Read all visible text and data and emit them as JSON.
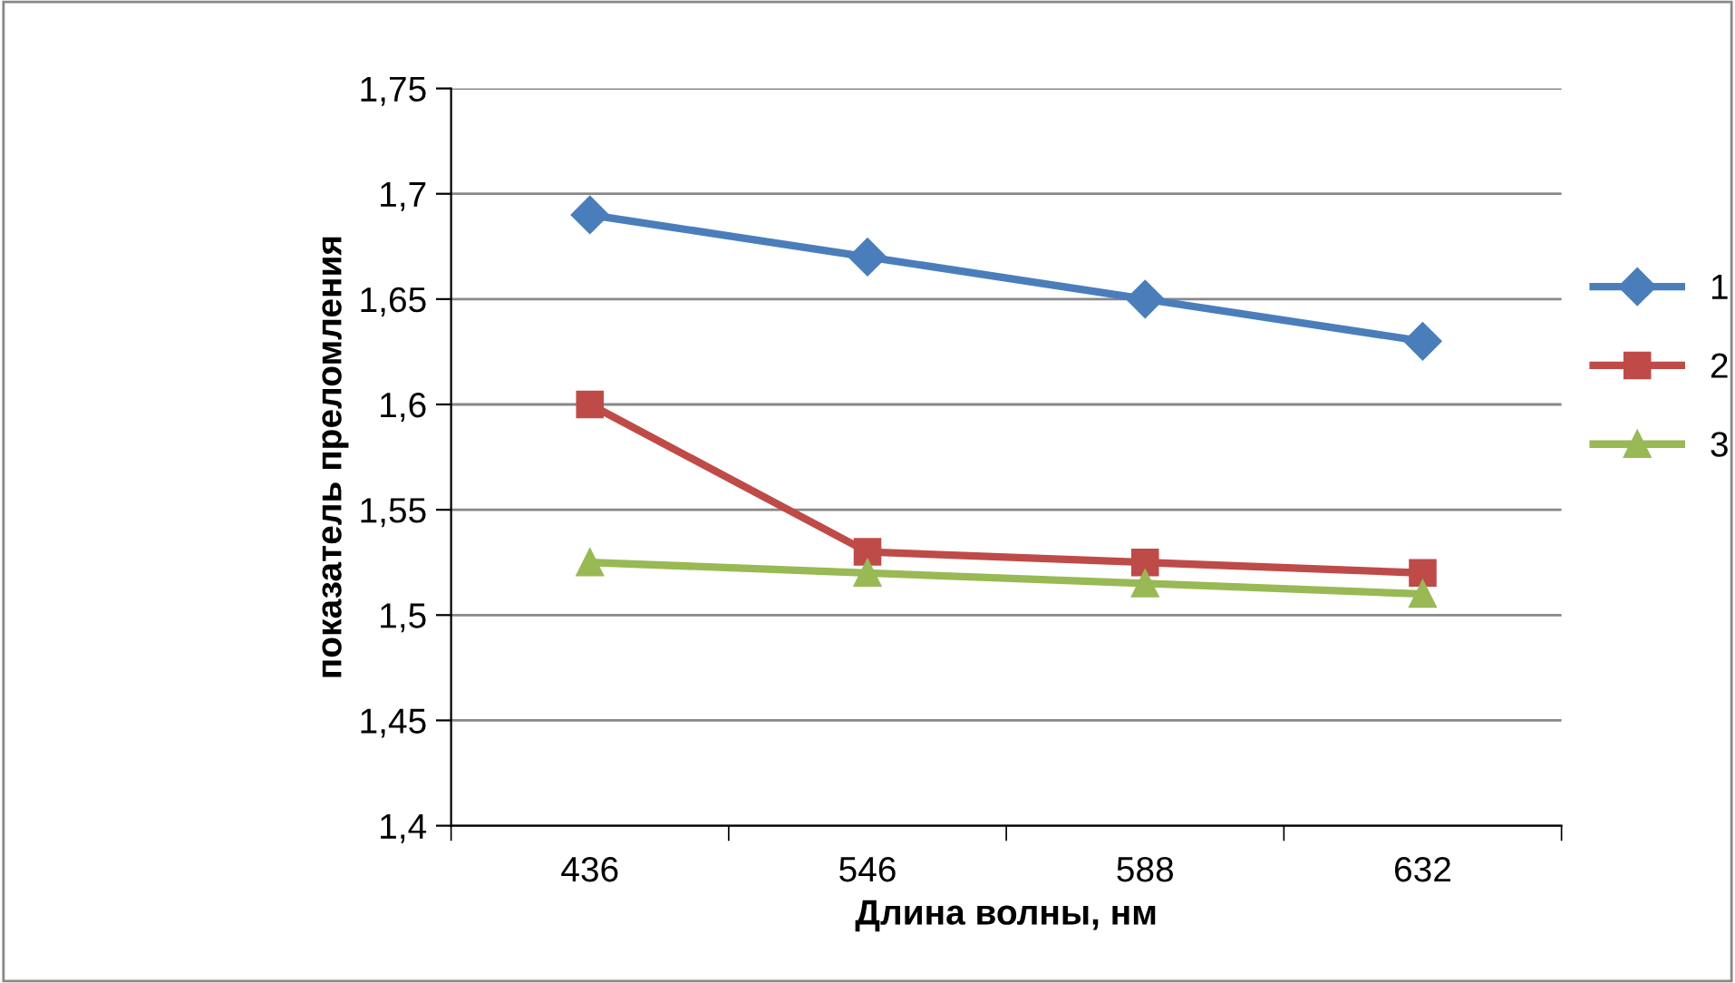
{
  "chart_data": {
    "type": "line",
    "xlabel": "Длина волны, нм",
    "ylabel": "показатель преломления",
    "categories": [
      "436",
      "546",
      "588",
      "632"
    ],
    "series": [
      {
        "name": "1",
        "color": "#4a7ebb",
        "marker": "diamond",
        "values": [
          1.69,
          1.67,
          1.65,
          1.63
        ]
      },
      {
        "name": "2",
        "color": "#be4b48",
        "marker": "square",
        "values": [
          1.6,
          1.53,
          1.525,
          1.52
        ]
      },
      {
        "name": "3",
        "color": "#98b954",
        "marker": "triangle",
        "values": [
          1.525,
          1.52,
          1.515,
          1.51
        ]
      }
    ],
    "ylim": [
      1.4,
      1.75
    ],
    "yticks": [
      {
        "value": 1.4,
        "label": "1,4"
      },
      {
        "value": 1.45,
        "label": "1,45"
      },
      {
        "value": 1.5,
        "label": "1,5"
      },
      {
        "value": 1.55,
        "label": "1,55"
      },
      {
        "value": 1.6,
        "label": "1,6"
      },
      {
        "value": 1.65,
        "label": "1,65"
      },
      {
        "value": 1.7,
        "label": "1,7"
      },
      {
        "value": 1.75,
        "label": "1,75"
      }
    ],
    "grid": "y",
    "legend": "right",
    "line_style": "solid"
  }
}
